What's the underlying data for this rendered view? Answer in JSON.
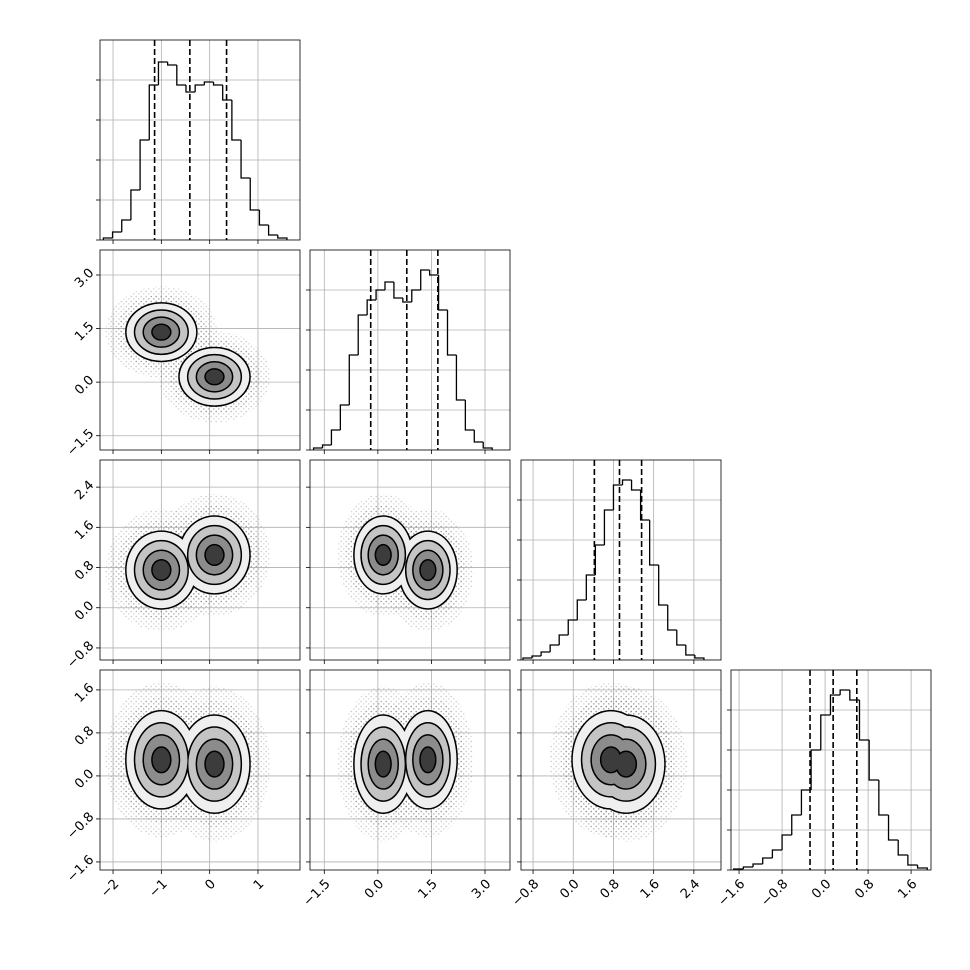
{
  "chart_data": {
    "type": "corner",
    "grid": true,
    "line_color": "#000000",
    "grid_color": "#b0b0b0",
    "scatter_color": "#8a8a8a",
    "contour_levels": [
      0.5,
      1,
      1.5,
      2
    ],
    "contour_fills": [
      "#3c3c3c",
      "#8c8c8c",
      "#c4c4c4",
      "#efefef"
    ],
    "components": [
      {
        "mean": [
          -1.0,
          1.4,
          0.75,
          0.3
        ],
        "sd": [
          0.36,
          0.4,
          0.38,
          0.45
        ]
      },
      {
        "mean": [
          0.1,
          0.15,
          1.05,
          0.22
        ],
        "sd": [
          0.36,
          0.4,
          0.38,
          0.45
        ]
      }
    ],
    "params": [
      {
        "lim": [
          -2.27,
          1.87
        ],
        "ticks": [
          {
            "value": -2,
            "label": "−2"
          },
          {
            "value": -1,
            "label": "−1"
          },
          0,
          1
        ],
        "quantiles": [
          -1.14,
          -0.41,
          0.35
        ],
        "hist": {
          "bins": [
            -2.2,
            -2.01,
            -1.82,
            -1.63,
            -1.44,
            -1.25,
            -1.06,
            -0.87,
            -0.68,
            -0.49,
            -0.3,
            -0.11,
            0.08,
            0.27,
            0.46,
            0.65,
            0.84,
            1.03,
            1.22,
            1.41,
            1.6
          ],
          "counts": [
            10,
            40,
            100,
            250,
            500,
            775,
            890,
            875,
            775,
            740,
            775,
            790,
            775,
            700,
            500,
            310,
            150,
            75,
            25,
            10
          ],
          "ylim": [
            0,
            1000
          ],
          "yticks": [
            0,
            200,
            400,
            600,
            800
          ]
        }
      },
      {
        "lim": [
          -1.9,
          3.7
        ],
        "ticks": [
          {
            "value": -1.5,
            "label": "−1.5"
          },
          {
            "value": 0,
            "label": "0.0"
          },
          1.5,
          {
            "value": 3,
            "label": "3.0"
          }
        ],
        "quantiles": [
          -0.2,
          0.81,
          1.68
        ],
        "hist": {
          "bins": [
            -1.8,
            -1.55,
            -1.3,
            -1.05,
            -0.8,
            -0.55,
            -0.3,
            -0.05,
            0.2,
            0.45,
            0.7,
            0.95,
            1.2,
            1.45,
            1.7,
            1.95,
            2.2,
            2.45,
            2.7,
            2.95,
            3.2
          ],
          "counts": [
            10,
            25,
            100,
            225,
            475,
            675,
            750,
            800,
            840,
            760,
            740,
            800,
            900,
            875,
            700,
            475,
            250,
            100,
            40,
            10
          ],
          "ylim": [
            0,
            1000
          ],
          "yticks": [
            0,
            200,
            400,
            600,
            800
          ]
        }
      },
      {
        "lim": [
          -1.04,
          2.94
        ],
        "ticks": [
          {
            "value": -0.8,
            "label": "−0.8"
          },
          {
            "value": 0,
            "label": "0.0"
          },
          0.8,
          1.6,
          2.4
        ],
        "quantiles": [
          0.42,
          0.92,
          1.36
        ],
        "hist": {
          "bins": [
            -1,
            -0.82,
            -0.64,
            -0.46,
            -0.28,
            -0.1,
            0.08,
            0.26,
            0.44,
            0.62,
            0.8,
            0.98,
            1.16,
            1.34,
            1.52,
            1.7,
            1.88,
            2.06,
            2.24,
            2.42,
            2.6
          ],
          "counts": [
            10,
            20,
            40,
            75,
            125,
            200,
            300,
            425,
            575,
            750,
            875,
            900,
            850,
            700,
            475,
            275,
            150,
            75,
            25,
            10
          ],
          "ylim": [
            0,
            1000
          ],
          "yticks": [
            0,
            200,
            400,
            600,
            800
          ]
        }
      },
      {
        "lim": [
          -1.75,
          1.97
        ],
        "ticks": [
          {
            "value": -1.6,
            "label": "−1.6"
          },
          {
            "value": -0.8,
            "label": "−0.8"
          },
          {
            "value": 0,
            "label": "0.0"
          },
          0.8,
          1.6
        ],
        "quantiles": [
          -0.28,
          0.15,
          0.59
        ],
        "hist": {
          "bins": [
            -1.7,
            -1.52,
            -1.34,
            -1.16,
            -0.98,
            -0.8,
            -0.62,
            -0.44,
            -0.26,
            -0.08,
            0.1,
            0.28,
            0.46,
            0.64,
            0.82,
            1.0,
            1.18,
            1.36,
            1.54,
            1.72,
            1.9
          ],
          "counts": [
            5,
            15,
            30,
            60,
            100,
            175,
            275,
            400,
            600,
            775,
            875,
            900,
            850,
            650,
            450,
            275,
            150,
            75,
            25,
            10
          ],
          "ylim": [
            0,
            1000
          ],
          "yticks": [
            0,
            200,
            400,
            600,
            800
          ]
        }
      }
    ]
  }
}
